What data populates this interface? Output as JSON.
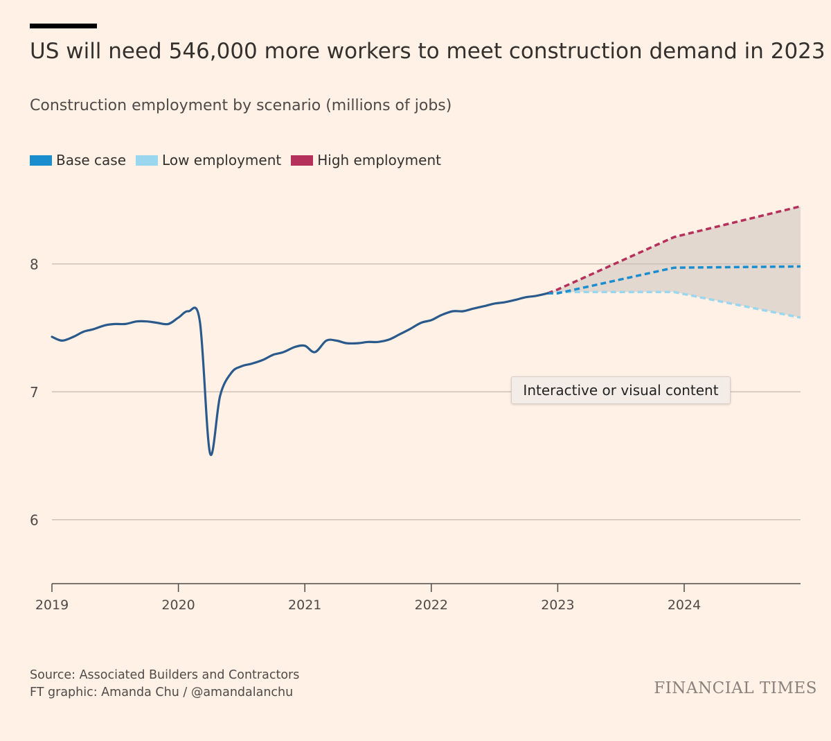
{
  "header": {
    "title": "US will need 546,000 more workers to meet construction demand in 2023",
    "subtitle": "Construction employment by scenario (millions of jobs)"
  },
  "legend": [
    {
      "label": "Base case",
      "color": "#1a8dcf"
    },
    {
      "label": "Low employment",
      "color": "#9ad6ee"
    },
    {
      "label": "High employment",
      "color": "#b5305a"
    }
  ],
  "overlay": {
    "placeholder_text": "Interactive or visual content"
  },
  "footer": {
    "source": "Source: Associated Builders and Contractors",
    "credit": "FT graphic: Amanda Chu / @amandalanchu",
    "brand": "FINANCIAL TIMES"
  },
  "colors": {
    "historical": "#2a5a8c",
    "base": "#1a8dcf",
    "low": "#9ad6ee",
    "high": "#b5305a",
    "band": "#e3d8d0",
    "grid": "#ccc1b7",
    "background": "#fff1e5"
  },
  "chart_data": {
    "type": "line",
    "title": "US will need 546,000 more workers to meet construction demand in 2023",
    "subtitle": "Construction employment by scenario (millions of jobs)",
    "x_axis": {
      "min": 2019.0,
      "max": 2024.92,
      "ticks": [
        "2019",
        "2020",
        "2021",
        "2022",
        "2023",
        "2024"
      ]
    },
    "y_axis": {
      "min": 5.5,
      "max": 8.6,
      "ticks": [
        "6",
        "7",
        "8"
      ],
      "grid": true
    },
    "legend_position": "top-left",
    "series": [
      {
        "name": "Historical",
        "style": "solid",
        "x": [
          2019.0,
          2019.08,
          2019.17,
          2019.25,
          2019.33,
          2019.42,
          2019.5,
          2019.58,
          2019.67,
          2019.75,
          2019.83,
          2019.92,
          2020.0,
          2020.08,
          2020.17,
          2020.25,
          2020.33,
          2020.42,
          2020.5,
          2020.58,
          2020.67,
          2020.75,
          2020.83,
          2020.92,
          2021.0,
          2021.08,
          2021.17,
          2021.25,
          2021.33,
          2021.42,
          2021.5,
          2021.58,
          2021.67,
          2021.75,
          2021.83,
          2021.92,
          2022.0,
          2022.08,
          2022.17,
          2022.25,
          2022.33,
          2022.42,
          2022.5,
          2022.58,
          2022.67,
          2022.75,
          2022.83,
          2022.92
        ],
        "values": [
          7.43,
          7.4,
          7.43,
          7.47,
          7.49,
          7.52,
          7.53,
          7.53,
          7.55,
          7.55,
          7.54,
          7.53,
          7.58,
          7.63,
          7.55,
          6.52,
          6.97,
          7.15,
          7.2,
          7.22,
          7.25,
          7.29,
          7.31,
          7.35,
          7.36,
          7.31,
          7.4,
          7.4,
          7.38,
          7.38,
          7.39,
          7.39,
          7.41,
          7.45,
          7.49,
          7.54,
          7.56,
          7.6,
          7.63,
          7.63,
          7.65,
          7.67,
          7.69,
          7.7,
          7.72,
          7.74,
          7.75,
          7.77
        ]
      },
      {
        "name": "Base case",
        "style": "dashed",
        "x": [
          2022.92,
          2023.0,
          2023.92,
          2024.92
        ],
        "values": [
          7.77,
          7.77,
          7.97,
          7.98
        ]
      },
      {
        "name": "Low employment",
        "style": "dashed",
        "x": [
          2022.92,
          2023.0,
          2023.92,
          2024.92
        ],
        "values": [
          7.77,
          7.78,
          7.78,
          7.58
        ]
      },
      {
        "name": "High employment",
        "style": "dashed",
        "x": [
          2022.92,
          2023.0,
          2023.92,
          2024.92
        ],
        "values": [
          7.77,
          7.8,
          8.21,
          8.45
        ]
      }
    ]
  }
}
